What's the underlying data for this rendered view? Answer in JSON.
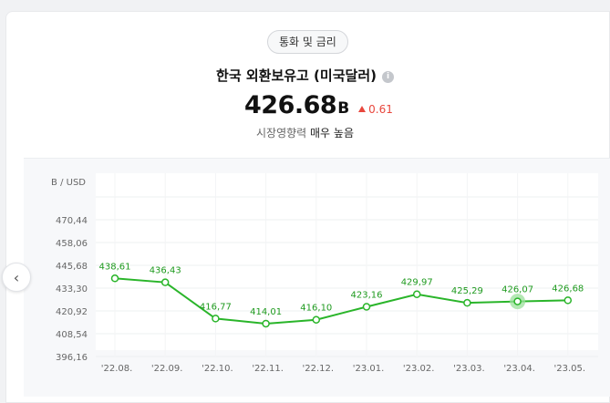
{
  "header": {
    "category": "통화 및 금리",
    "title": "한국 외환보유고 (미국달러)",
    "value": "426.68",
    "unit": "B",
    "change": "0.61",
    "influence_label": "시장영향력",
    "influence_value": "매우 높음"
  },
  "colors": {
    "line": "#2ab52a",
    "highlight": "#9be09b",
    "up": "#e8473d"
  },
  "chart_data": {
    "type": "line",
    "ylabel": "B / USD",
    "x": [
      "'22.08.",
      "'22.09.",
      "'22.10.",
      "'22.11.",
      "'22.12.",
      "'23.01.",
      "'23.02.",
      "'23.03.",
      "'23.04.",
      "'23.05."
    ],
    "series": [
      {
        "values": [
          438.61,
          436.43,
          416.77,
          414.01,
          416.1,
          423.16,
          429.97,
          425.29,
          426.07,
          426.68
        ],
        "labels": [
          "438,61",
          "436,43",
          "416,77",
          "414,01",
          "416,10",
          "423,16",
          "429,97",
          "425,29",
          "426,07",
          "426,68"
        ]
      }
    ],
    "yticks": [
      396.16,
      408.54,
      420.92,
      433.3,
      445.68,
      458.06,
      470.44
    ],
    "ytick_labels": [
      "396,16",
      "408,54",
      "420,92",
      "433,30",
      "445,68",
      "458,06",
      "470,44"
    ],
    "ylim": [
      396.16,
      470.44
    ],
    "highlight_index": 8,
    "grid": true
  }
}
